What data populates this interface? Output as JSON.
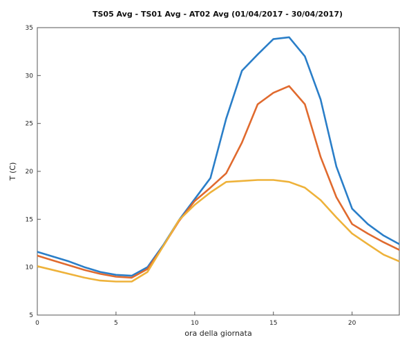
{
  "chart_data": {
    "type": "line",
    "title": "TS05 Avg - TS01 Avg - AT02 Avg  (01/04/2017 - 30/04/2017)",
    "xlabel": "ora della giornata",
    "ylabel": "T (C)",
    "xlim": [
      0,
      23
    ],
    "ylim": [
      5,
      35
    ],
    "x_ticks": [
      0,
      5,
      10,
      15,
      20
    ],
    "y_ticks": [
      5,
      10,
      15,
      20,
      25,
      30,
      35
    ],
    "grid": false,
    "x": [
      0,
      1,
      2,
      3,
      4,
      5,
      6,
      7,
      8,
      9,
      10,
      11,
      12,
      13,
      14,
      15,
      16,
      17,
      18,
      19,
      20,
      21,
      22,
      23
    ],
    "series": [
      {
        "color": "#2a7ec8",
        "values": [
          11.6,
          11.1,
          10.6,
          10.0,
          9.5,
          9.2,
          9.1,
          10.0,
          12.3,
          14.9,
          17.1,
          19.3,
          25.5,
          30.5,
          32.2,
          33.8,
          34.0,
          32.0,
          27.5,
          20.5,
          16.1,
          14.5,
          13.3,
          12.4
        ]
      },
      {
        "color": "#e06a2e",
        "values": [
          11.2,
          10.7,
          10.2,
          9.7,
          9.3,
          9.0,
          8.9,
          9.8,
          12.2,
          14.8,
          16.9,
          18.3,
          19.8,
          23.0,
          27.0,
          28.2,
          28.9,
          27.0,
          21.5,
          17.3,
          14.5,
          13.5,
          12.6,
          11.8
        ]
      },
      {
        "color": "#eeb23a",
        "values": [
          10.1,
          9.7,
          9.3,
          8.9,
          8.6,
          8.5,
          8.5,
          9.5,
          12.2,
          14.9,
          16.5,
          17.8,
          18.9,
          19.0,
          19.1,
          19.1,
          18.9,
          18.3,
          17.0,
          15.2,
          13.5,
          12.4,
          11.3,
          10.6
        ]
      }
    ]
  }
}
